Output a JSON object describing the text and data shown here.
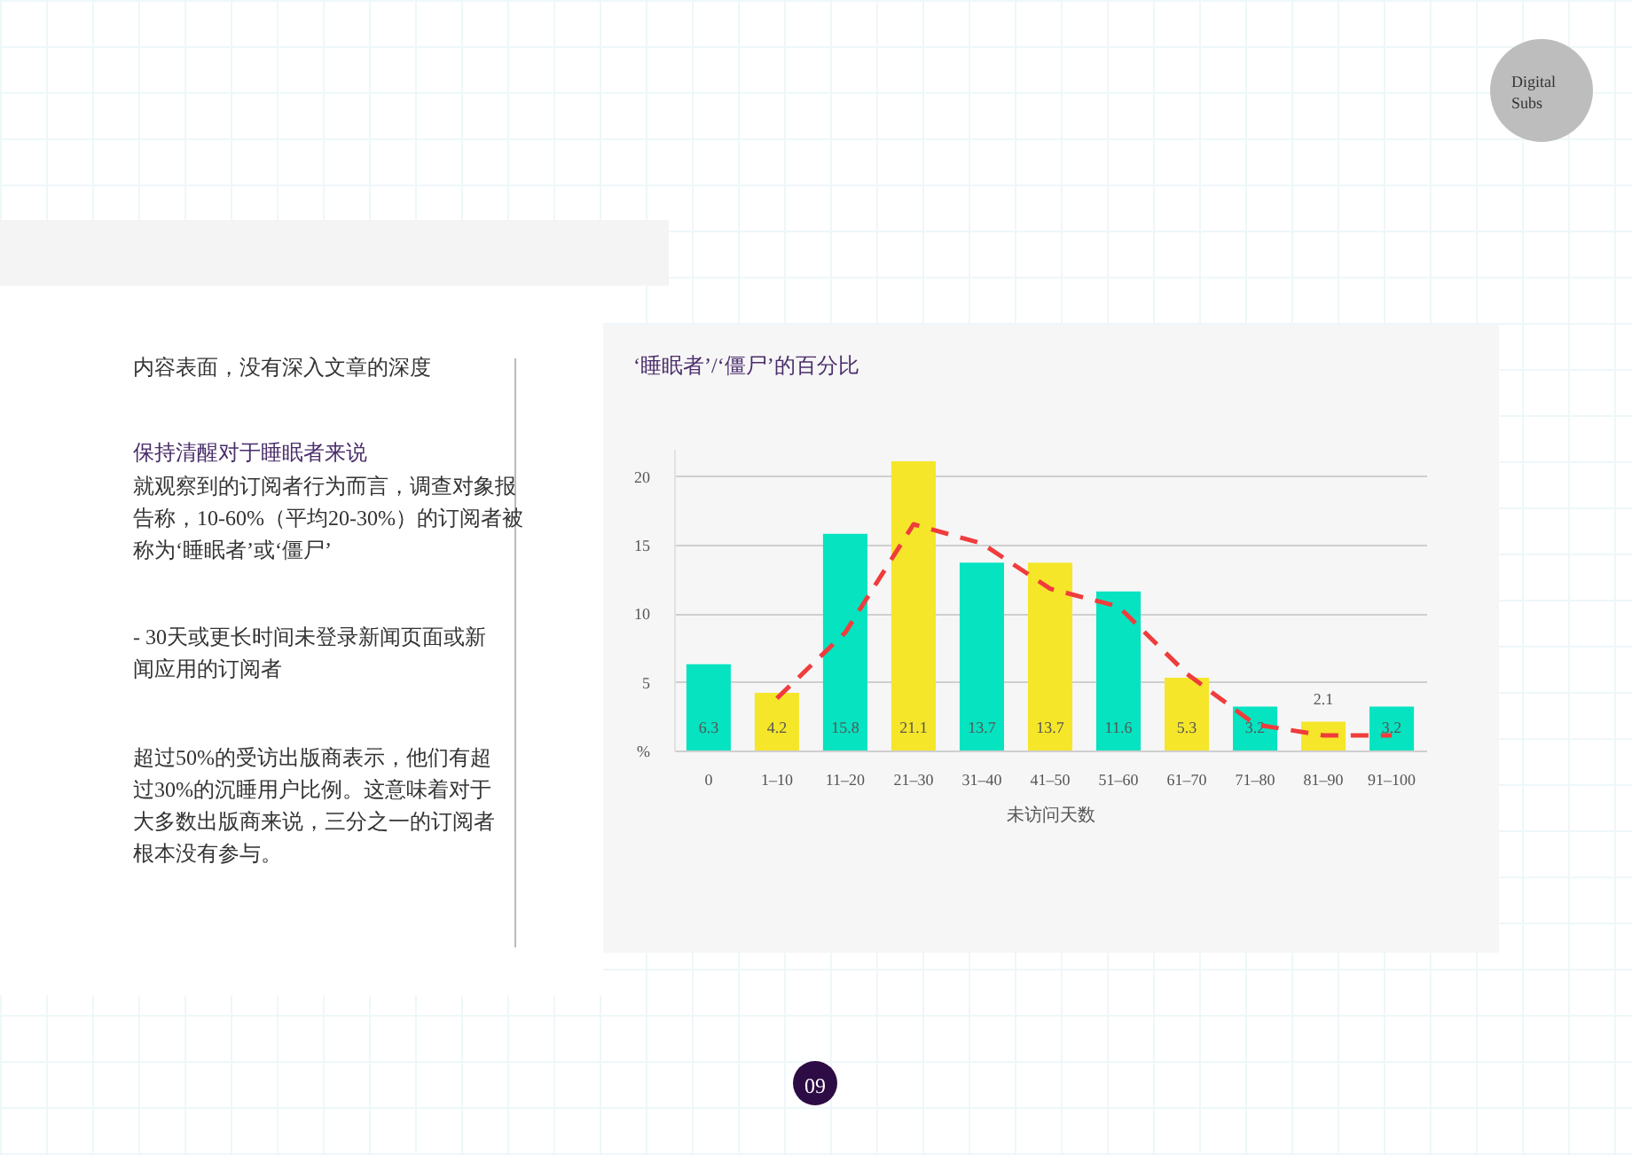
{
  "chart_data": {
    "type": "bar",
    "title": "‘睡眠者’/‘僵尸’的百分比",
    "xlabel": "未访问天数",
    "categories": [
      "0",
      "1–10",
      "11–20",
      "21–30",
      "31–40",
      "41–50",
      "51–60",
      "61–70",
      "71–80",
      "81–90",
      "91–100"
    ],
    "series": [
      {
        "values": [
          6.3,
          4.2,
          15.8,
          21.1,
          13.7,
          13.7,
          11.6,
          5.3,
          3.2,
          2.1,
          3.2
        ],
        "colors": [
          "#06e3c1",
          "#f5e62a",
          "#06e3c1",
          "#f5e62a",
          "#06e3c1",
          "#f5e62a",
          "#06e3c1",
          "#f5e62a",
          "#06e3c1",
          "#f5e62a",
          "#06e3c1"
        ],
        "value_labels": [
          "6.3",
          "4.2",
          "15.8",
          "21.1",
          "13.7",
          "13.7",
          "11.6",
          "5.3",
          "3.2",
          "2.1",
          "3.2"
        ]
      },
      {
        "type": "line",
        "color": "#f03c3c",
        "values": [
          null,
          3.8,
          8.6,
          16.5,
          15.1,
          11.8,
          10.5,
          5.6,
          1.9,
          1.1,
          1.1
        ],
        "line_style": "dashed"
      }
    ],
    "ylim": [
      0,
      22
    ],
    "yticks": [
      {
        "value": 0,
        "label": "%"
      },
      5,
      10,
      15,
      20
    ],
    "grid": "y",
    "marker": "none",
    "annotations": [
      "Digital Subs",
      "内容表面，没有深入文章的深度",
      "保持清醒对于睡眠者来说",
      "就观察到的订阅者行为而言，调查对象报告称，10-60%（平均20-30%）的订阅者被称为‘睡眠者’或‘僵尸’",
      "- 30天或更长时间未登录新闻页面或新闻应用的订阅者",
      "超过50%的受访出版商表示，他们有超过30%的沉睡用户比例。这意味着对于大多数出版商来说，三分之一的订阅者根本没有参与。",
      "09"
    ]
  }
}
